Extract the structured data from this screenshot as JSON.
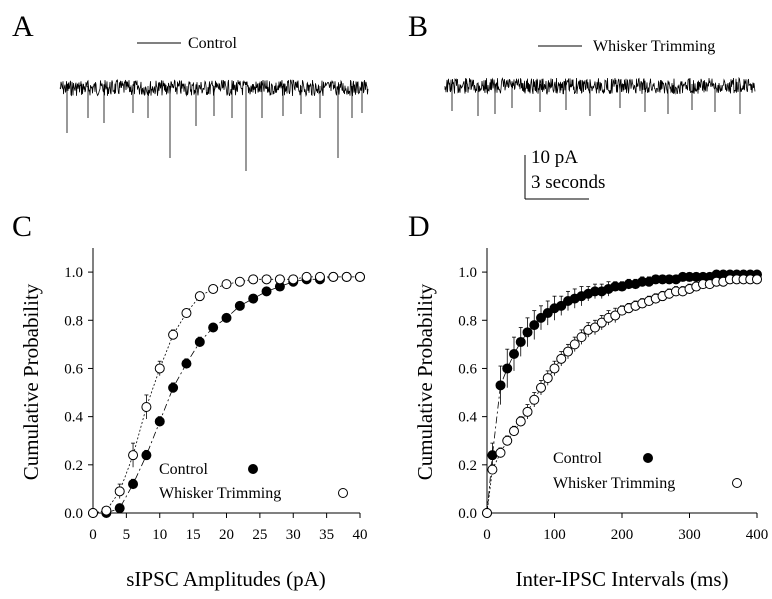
{
  "panels": {
    "A": {
      "letter": "A",
      "trace_label": "Control"
    },
    "B": {
      "letter": "B",
      "trace_label": "Whisker Trimming"
    },
    "C": {
      "letter": "C"
    },
    "D": {
      "letter": "D"
    }
  },
  "scale_bar": {
    "current_label": "10 pA",
    "time_label": "3 seconds"
  },
  "chart_data": [
    {
      "panel": "C",
      "type": "scatter",
      "xlabel": "sIPSC Amplitudes  (pA)",
      "ylabel": "Cumulative Probability",
      "xlim": [
        0,
        40
      ],
      "ylim": [
        0,
        1.1
      ],
      "xticks": [
        "0",
        "5",
        "10",
        "15",
        "20",
        "25",
        "30",
        "35",
        "40"
      ],
      "yticks": [
        "0.0",
        "0.2",
        "0.4",
        "0.6",
        "0.8",
        "1.0"
      ],
      "xtick_values": [
        0,
        5,
        10,
        15,
        20,
        25,
        30,
        35,
        40
      ],
      "ytick_values": [
        0,
        0.2,
        0.4,
        0.6,
        0.8,
        1.0
      ],
      "grid": false,
      "legend_position": "bottom-right",
      "series": [
        {
          "name": "Control",
          "marker": "filled-circle",
          "x": [
            0,
            2,
            4,
            6,
            8,
            10,
            12,
            14,
            16,
            18,
            20,
            22,
            24,
            26,
            28,
            30,
            32,
            34,
            36,
            38,
            40
          ],
          "y": [
            0.0,
            0.0,
            0.02,
            0.12,
            0.24,
            0.38,
            0.52,
            0.62,
            0.71,
            0.77,
            0.81,
            0.86,
            0.89,
            0.92,
            0.94,
            0.96,
            0.97,
            0.97,
            0.98,
            0.98,
            0.98
          ],
          "err": [
            0,
            0,
            0.01,
            0.02,
            0.02,
            0.02,
            0.02,
            0.02,
            0.02,
            0.01,
            0.01,
            0.01,
            0.01,
            0.01,
            0.01,
            0.01,
            0,
            0,
            0,
            0,
            0
          ]
        },
        {
          "name": "Whisker Trimming",
          "marker": "open-circle",
          "x": [
            0,
            2,
            4,
            6,
            8,
            10,
            12,
            14,
            16,
            18,
            20,
            22,
            24,
            26,
            28,
            30,
            32,
            34,
            36,
            38,
            40
          ],
          "y": [
            0.0,
            0.01,
            0.09,
            0.24,
            0.44,
            0.6,
            0.74,
            0.83,
            0.9,
            0.93,
            0.95,
            0.96,
            0.97,
            0.97,
            0.97,
            0.97,
            0.98,
            0.98,
            0.98,
            0.98,
            0.98
          ],
          "err": [
            0,
            0.01,
            0.03,
            0.05,
            0.05,
            0.03,
            0.02,
            0.01,
            0.01,
            0.01,
            0,
            0,
            0,
            0,
            0,
            0,
            0,
            0,
            0,
            0,
            0
          ]
        }
      ]
    },
    {
      "panel": "D",
      "type": "scatter",
      "xlabel": "Inter-IPSC Intervals  (ms)",
      "ylabel": "Cumulative Probability",
      "xlim": [
        0,
        400
      ],
      "ylim": [
        0,
        1.1
      ],
      "xticks": [
        "0",
        "100",
        "200",
        "300",
        "400"
      ],
      "yticks": [
        "0.0",
        "0.2",
        "0.4",
        "0.6",
        "0.8",
        "1.0"
      ],
      "xtick_values": [
        0,
        100,
        200,
        300,
        400
      ],
      "ytick_values": [
        0,
        0.2,
        0.4,
        0.6,
        0.8,
        1.0
      ],
      "grid": false,
      "legend_position": "bottom-right",
      "series": [
        {
          "name": "Control",
          "marker": "filled-circle",
          "x": [
            0,
            8,
            20,
            30,
            40,
            50,
            60,
            70,
            80,
            90,
            100,
            110,
            120,
            130,
            140,
            150,
            160,
            170,
            180,
            190,
            200,
            210,
            220,
            230,
            240,
            250,
            260,
            270,
            280,
            290,
            300,
            310,
            320,
            330,
            340,
            350,
            360,
            370,
            380,
            390,
            400
          ],
          "y": [
            0.0,
            0.24,
            0.53,
            0.6,
            0.66,
            0.71,
            0.75,
            0.78,
            0.81,
            0.83,
            0.85,
            0.86,
            0.88,
            0.89,
            0.9,
            0.91,
            0.92,
            0.92,
            0.93,
            0.94,
            0.94,
            0.95,
            0.95,
            0.96,
            0.96,
            0.97,
            0.97,
            0.97,
            0.97,
            0.98,
            0.98,
            0.98,
            0.98,
            0.98,
            0.99,
            0.99,
            0.99,
            0.99,
            0.99,
            0.99,
            0.99
          ],
          "err": [
            0,
            0.05,
            0.08,
            0.08,
            0.07,
            0.06,
            0.06,
            0.06,
            0.05,
            0.05,
            0.05,
            0.04,
            0.04,
            0.04,
            0.04,
            0.03,
            0.03,
            0.03,
            0.03,
            0.02,
            0.02,
            0.02,
            0.02,
            0.02,
            0.02,
            0.01,
            0.01,
            0.01,
            0.01,
            0.01,
            0.01,
            0.01,
            0.01,
            0.01,
            0,
            0,
            0,
            0,
            0,
            0,
            0
          ]
        },
        {
          "name": "Whisker Trimming",
          "marker": "open-circle",
          "x": [
            0,
            8,
            20,
            30,
            40,
            50,
            60,
            70,
            80,
            90,
            100,
            110,
            120,
            130,
            140,
            150,
            160,
            170,
            180,
            190,
            200,
            210,
            220,
            230,
            240,
            250,
            260,
            270,
            280,
            290,
            300,
            310,
            320,
            330,
            340,
            350,
            360,
            370,
            380,
            390,
            400
          ],
          "y": [
            0.0,
            0.18,
            0.25,
            0.3,
            0.34,
            0.38,
            0.42,
            0.47,
            0.52,
            0.56,
            0.6,
            0.64,
            0.67,
            0.7,
            0.73,
            0.76,
            0.77,
            0.79,
            0.81,
            0.82,
            0.84,
            0.85,
            0.86,
            0.87,
            0.88,
            0.89,
            0.9,
            0.91,
            0.92,
            0.92,
            0.93,
            0.94,
            0.95,
            0.95,
            0.96,
            0.96,
            0.97,
            0.97,
            0.97,
            0.97,
            0.97
          ],
          "err": [
            0,
            0.02,
            0.02,
            0.02,
            0.02,
            0.02,
            0.03,
            0.03,
            0.03,
            0.03,
            0.03,
            0.03,
            0.03,
            0.03,
            0.03,
            0.03,
            0.03,
            0.03,
            0.03,
            0.03,
            0.02,
            0.02,
            0.02,
            0.02,
            0.02,
            0.02,
            0.02,
            0.02,
            0.02,
            0.02,
            0.02,
            0.01,
            0.01,
            0.01,
            0.01,
            0.01,
            0.01,
            0.01,
            0.01,
            0.01,
            0.01
          ]
        }
      ]
    }
  ]
}
